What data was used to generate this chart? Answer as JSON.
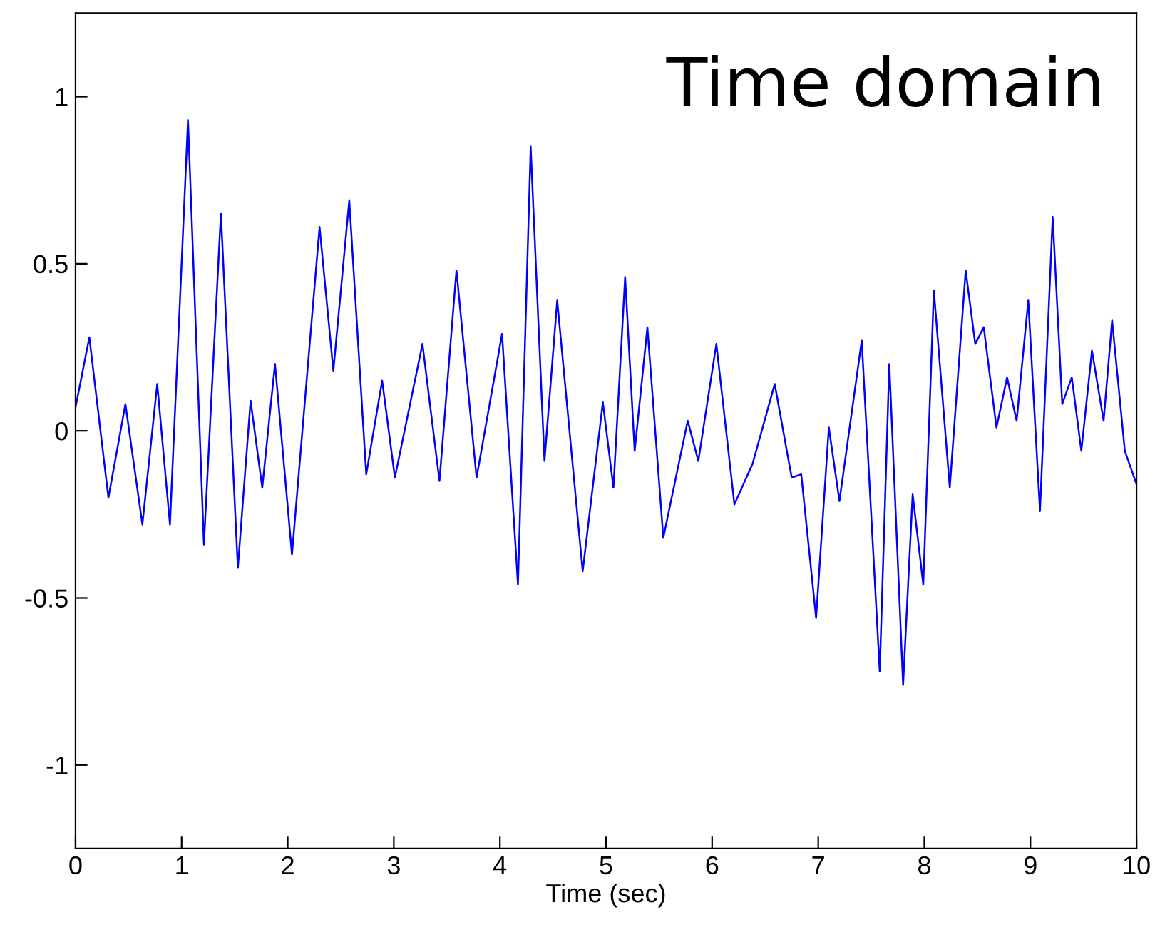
{
  "chart_data": {
    "type": "line",
    "title": "Time domain",
    "xlabel": "Time (sec)",
    "x": [
      0,
      0.13,
      0.31,
      0.47,
      0.63,
      0.77,
      0.89,
      1.06,
      1.21,
      1.37,
      1.53,
      1.65,
      1.76,
      1.88,
      2.04,
      2.3,
      2.43,
      2.58,
      2.74,
      2.89,
      3.01,
      3.27,
      3.43,
      3.59,
      3.78,
      4.02,
      4.17,
      4.29,
      4.42,
      4.54,
      4.78,
      4.97,
      5.07,
      5.18,
      5.27,
      5.39,
      5.54,
      5.77,
      5.87,
      6.04,
      6.21,
      6.38,
      6.59,
      6.75,
      6.84,
      6.98,
      7.1,
      7.2,
      7.41,
      7.58,
      7.67,
      7.8,
      7.89,
      7.99,
      8.09,
      8.24,
      8.39,
      8.48,
      8.56,
      8.68,
      8.78,
      8.87,
      8.98,
      9.09,
      9.21,
      9.3,
      9.39,
      9.48,
      9.58,
      9.69,
      9.77,
      9.89,
      10
    ],
    "series": [
      {
        "color": "#0000ff",
        "values": [
          0.07,
          0.28,
          -0.2,
          0.08,
          -0.28,
          0.14,
          -0.28,
          0.93,
          -0.34,
          0.65,
          -0.41,
          0.09,
          -0.17,
          0.2,
          -0.37,
          0.61,
          0.18,
          0.69,
          -0.13,
          0.15,
          -0.14,
          0.26,
          -0.15,
          0.48,
          -0.14,
          0.29,
          -0.46,
          0.85,
          -0.09,
          0.39,
          -0.42,
          0.085,
          -0.17,
          0.46,
          -0.06,
          0.31,
          -0.32,
          0.03,
          -0.09,
          0.26,
          -0.22,
          -0.1,
          0.14,
          -0.14,
          -0.13,
          -0.56,
          0.01,
          -0.21,
          0.27,
          -0.72,
          0.2,
          -0.76,
          -0.19,
          -0.46,
          0.42,
          -0.17,
          0.48,
          0.26,
          0.31,
          0.01,
          0.16,
          0.03,
          0.39,
          -0.24,
          0.64,
          0.08,
          0.16,
          -0.06,
          0.24,
          0.03,
          0.33,
          -0.06,
          -0.16
        ]
      }
    ],
    "xlim": [
      0,
      10
    ],
    "xticks": [
      0,
      1,
      2,
      3,
      4,
      5,
      6,
      7,
      8,
      9,
      10
    ],
    "ylim": [
      -1.25,
      1.25
    ],
    "yticks": [
      -1,
      -0.5,
      0,
      0.5,
      1
    ],
    "grid": false,
    "legend": false,
    "marker": "none",
    "line_style": "solid"
  }
}
